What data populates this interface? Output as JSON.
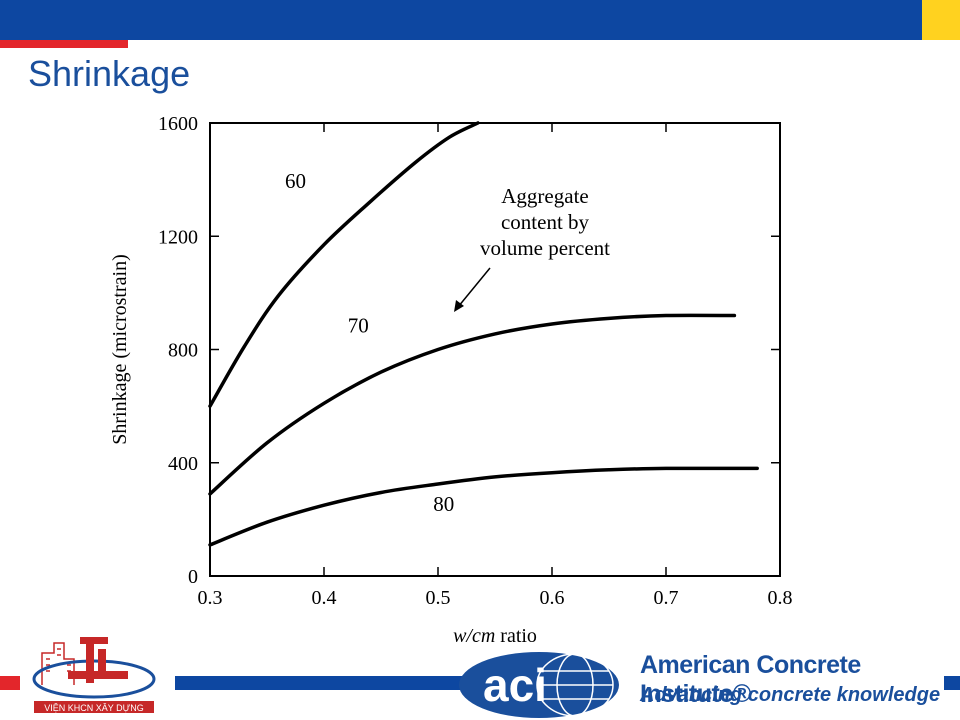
{
  "slide": {
    "title": "Shrinkage"
  },
  "colors": {
    "primary_blue": "#0d47a1",
    "title_blue": "#1a4f9c",
    "accent_red": "#e3262b",
    "accent_yellow": "#ffd21f"
  },
  "footer": {
    "left_logo_text": "VIỆN KHCN XÂY DỰNG",
    "aci_logo_text": "aci",
    "aci_name": "American Concrete Institute®",
    "aci_tagline": "Advancing concrete knowledge"
  },
  "chart_data": {
    "type": "line",
    "title": "",
    "xlabel_italic": "w/cm",
    "xlabel_rest": " ratio",
    "ylabel": "Shrinkage (microstrain)",
    "xlim": [
      0.3,
      0.8
    ],
    "ylim": [
      0,
      1600
    ],
    "x_ticks": [
      "0.3",
      "0.4",
      "0.5",
      "0.6",
      "0.7",
      "0.8"
    ],
    "y_ticks": [
      "0",
      "400",
      "800",
      "1200",
      "1600"
    ],
    "grid": false,
    "annotation": {
      "lines": [
        "Aggregate",
        "content by",
        "volume percent"
      ]
    },
    "series": [
      {
        "name": "60",
        "x": [
          0.3,
          0.33,
          0.36,
          0.4,
          0.44,
          0.48,
          0.51,
          0.535
        ],
        "y": [
          600,
          810,
          990,
          1170,
          1320,
          1460,
          1550,
          1600
        ]
      },
      {
        "name": "70",
        "x": [
          0.3,
          0.35,
          0.4,
          0.45,
          0.5,
          0.55,
          0.6,
          0.65,
          0.7,
          0.76
        ],
        "y": [
          290,
          470,
          610,
          720,
          800,
          855,
          890,
          910,
          920,
          920
        ]
      },
      {
        "name": "80",
        "x": [
          0.3,
          0.35,
          0.4,
          0.45,
          0.5,
          0.55,
          0.6,
          0.65,
          0.7,
          0.78
        ],
        "y": [
          110,
          190,
          250,
          295,
          325,
          350,
          365,
          375,
          380,
          380
        ]
      }
    ]
  }
}
